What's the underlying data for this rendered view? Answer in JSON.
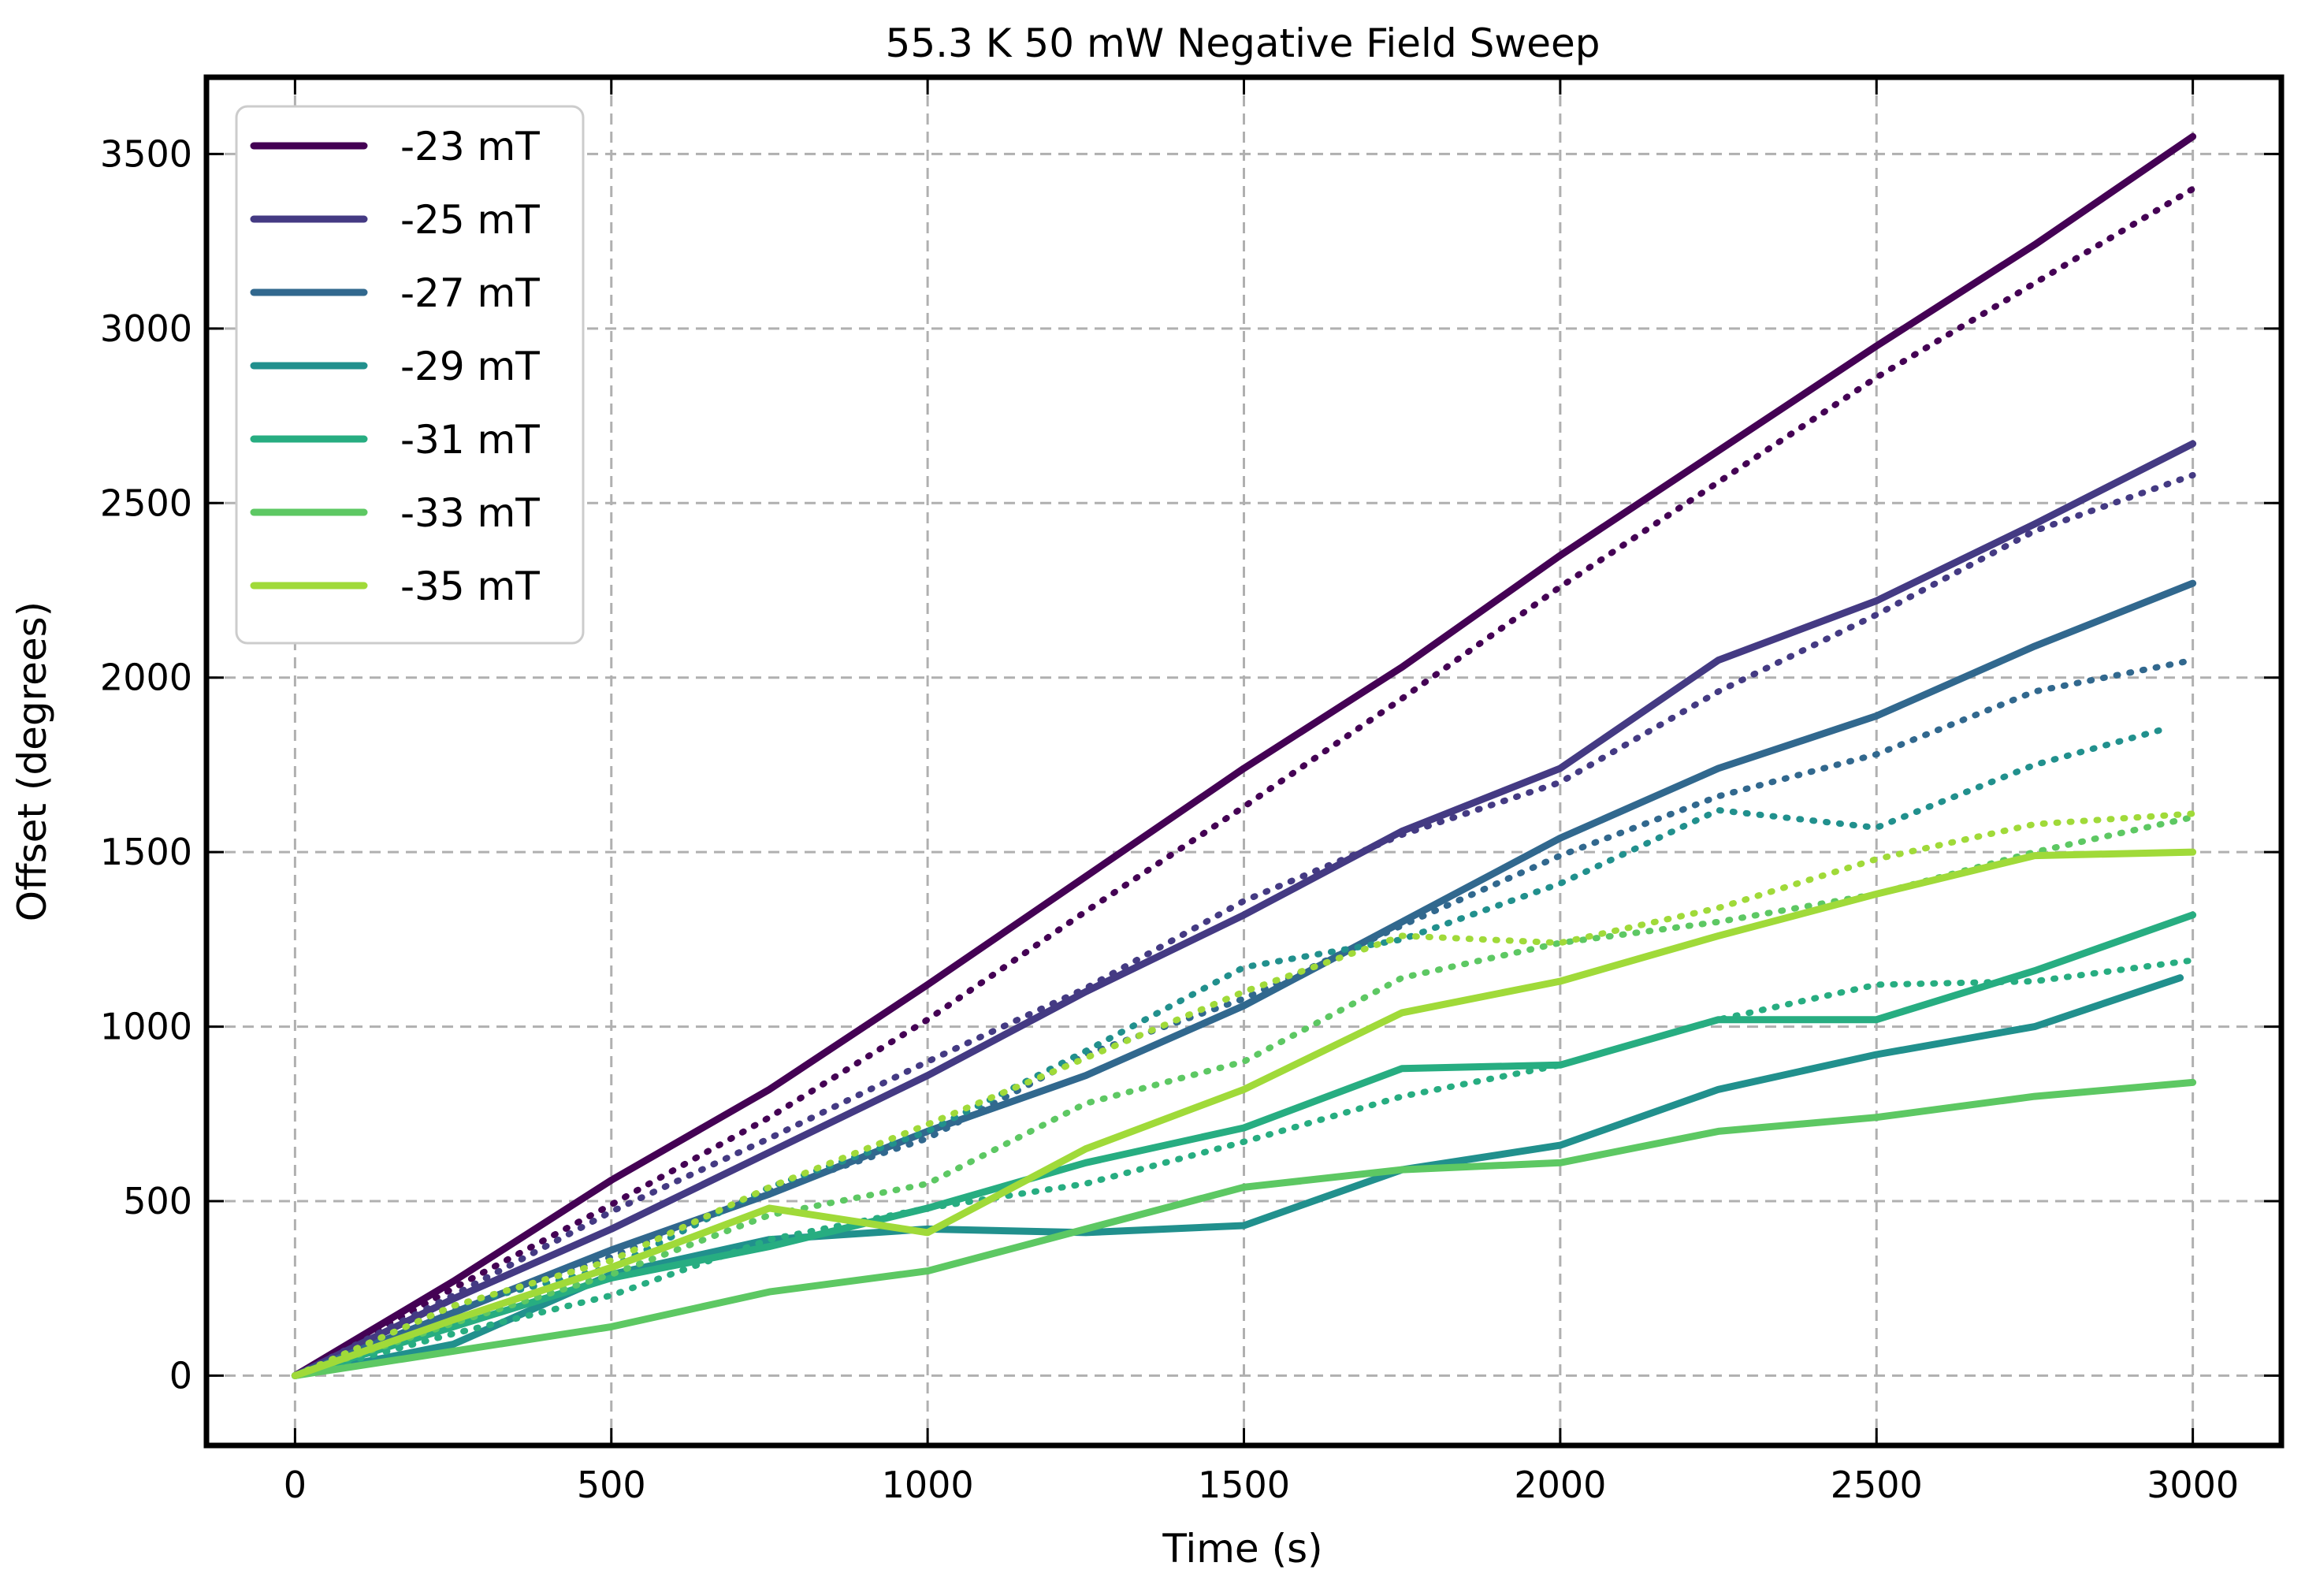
{
  "chart_data": {
    "type": "line",
    "title": "55.3 K 50 mW Negative Field Sweep",
    "xlabel": "Time (s)",
    "ylabel": "Offset (degrees)",
    "xlim": [
      -140,
      3140
    ],
    "ylim": [
      -200,
      3720
    ],
    "xticks": [
      0,
      500,
      1000,
      1500,
      2000,
      2500,
      3000
    ],
    "yticks": [
      0,
      500,
      1000,
      1500,
      2000,
      2500,
      3000,
      3500
    ],
    "grid": true,
    "legend_position": "top-left",
    "line_style_note": "solid and dotted traces per field value",
    "series": [
      {
        "name": "-23 mT",
        "color": "#440154",
        "style": "solid",
        "x": [
          0,
          250,
          500,
          750,
          1000,
          1250,
          1500,
          1750,
          2000,
          2250,
          2500,
          2750,
          3000
        ],
        "y": [
          0,
          270,
          560,
          820,
          1120,
          1430,
          1740,
          2030,
          2350,
          2650,
          2950,
          3240,
          3550
        ]
      },
      {
        "name": "",
        "color": "#440154",
        "style": "dotted",
        "x": [
          0,
          250,
          500,
          750,
          1000,
          1250,
          1500,
          1750,
          2000,
          2250,
          2500,
          2750,
          3000
        ],
        "y": [
          0,
          250,
          490,
          740,
          1020,
          1330,
          1630,
          1940,
          2260,
          2560,
          2860,
          3130,
          3400
        ]
      },
      {
        "name": "-25 mT",
        "color": "#443a83",
        "style": "solid",
        "x": [
          0,
          250,
          500,
          750,
          1000,
          1250,
          1500,
          1750,
          2000,
          2250,
          2500,
          2750,
          3000
        ],
        "y": [
          0,
          220,
          420,
          640,
          860,
          1100,
          1320,
          1560,
          1740,
          2050,
          2220,
          2440,
          2670
        ]
      },
      {
        "name": "",
        "color": "#443a83",
        "style": "dotted",
        "x": [
          0,
          250,
          500,
          750,
          1000,
          1250,
          1500,
          1750,
          2000,
          2250,
          2500,
          2750,
          3000
        ],
        "y": [
          0,
          230,
          470,
          680,
          900,
          1110,
          1360,
          1550,
          1700,
          1960,
          2180,
          2420,
          2580
        ]
      },
      {
        "name": "-27 mT",
        "color": "#31688e",
        "style": "solid",
        "x": [
          0,
          250,
          500,
          750,
          1000,
          1250,
          1500,
          1750,
          2000,
          2250,
          2500,
          2750,
          3000
        ],
        "y": [
          0,
          180,
          360,
          520,
          700,
          860,
          1060,
          1300,
          1540,
          1740,
          1890,
          2090,
          2270
        ]
      },
      {
        "name": "",
        "color": "#31688e",
        "style": "dotted",
        "x": [
          0,
          250,
          500,
          750,
          1000,
          1250,
          1500,
          1750,
          2000,
          2250,
          2500,
          2750,
          3000
        ],
        "y": [
          0,
          190,
          340,
          530,
          680,
          920,
          1080,
          1290,
          1490,
          1660,
          1780,
          1960,
          2050
        ]
      },
      {
        "name": "-29 mT",
        "color": "#21908d",
        "style": "solid",
        "x": [
          0,
          250,
          500,
          750,
          1000,
          1250,
          1500,
          1750,
          2000,
          2250,
          2500,
          2750,
          2980
        ],
        "y": [
          0,
          90,
          290,
          390,
          420,
          410,
          430,
          590,
          660,
          820,
          920,
          1000,
          1140
        ]
      },
      {
        "name": "",
        "color": "#21908d",
        "style": "dotted",
        "x": [
          0,
          250,
          500,
          750,
          1000,
          1250,
          1500,
          1750,
          2000,
          2250,
          2500,
          2750,
          2950
        ],
        "y": [
          0,
          200,
          310,
          540,
          700,
          930,
          1170,
          1250,
          1410,
          1620,
          1570,
          1750,
          1850
        ]
      },
      {
        "name": "-31 mT",
        "color": "#27ad81",
        "style": "solid",
        "x": [
          0,
          250,
          500,
          750,
          1000,
          1250,
          1500,
          1750,
          2000,
          2250,
          2500,
          2750,
          3000
        ],
        "y": [
          0,
          140,
          280,
          370,
          480,
          610,
          710,
          880,
          890,
          1020,
          1020,
          1160,
          1320
        ]
      },
      {
        "name": "",
        "color": "#27ad81",
        "style": "dotted",
        "x": [
          0,
          250,
          500,
          750,
          1000,
          1250,
          1500,
          1750,
          2000,
          2250,
          2500,
          2750,
          3000
        ],
        "y": [
          0,
          120,
          230,
          390,
          480,
          550,
          670,
          800,
          890,
          1020,
          1120,
          1130,
          1190
        ]
      },
      {
        "name": "-33 mT",
        "color": "#5dc863",
        "style": "solid",
        "x": [
          0,
          250,
          500,
          750,
          1000,
          1250,
          1500,
          1750,
          2000,
          2250,
          2500,
          2750,
          3000
        ],
        "y": [
          0,
          70,
          140,
          240,
          300,
          420,
          540,
          590,
          610,
          700,
          740,
          800,
          840
        ]
      },
      {
        "name": "",
        "color": "#5dc863",
        "style": "dotted",
        "x": [
          0,
          250,
          500,
          750,
          1000,
          1250,
          1500,
          1750,
          2000,
          2250,
          2500,
          2750,
          3000
        ],
        "y": [
          0,
          150,
          290,
          460,
          550,
          780,
          900,
          1140,
          1240,
          1300,
          1380,
          1500,
          1600
        ]
      },
      {
        "name": "-35 mT",
        "color": "#a0da39",
        "style": "solid",
        "x": [
          0,
          250,
          500,
          750,
          1000,
          1250,
          1500,
          1750,
          2000,
          2250,
          2500,
          2750,
          3000
        ],
        "y": [
          0,
          160,
          310,
          480,
          410,
          650,
          820,
          1040,
          1130,
          1260,
          1380,
          1490,
          1500
        ]
      },
      {
        "name": "",
        "color": "#a0da39",
        "style": "dotted",
        "x": [
          0,
          250,
          500,
          750,
          1000,
          1250,
          1500,
          1750,
          2000,
          2250,
          2500,
          2750,
          3000
        ],
        "y": [
          0,
          200,
          330,
          540,
          720,
          910,
          1100,
          1260,
          1240,
          1340,
          1480,
          1580,
          1610
        ]
      }
    ]
  }
}
